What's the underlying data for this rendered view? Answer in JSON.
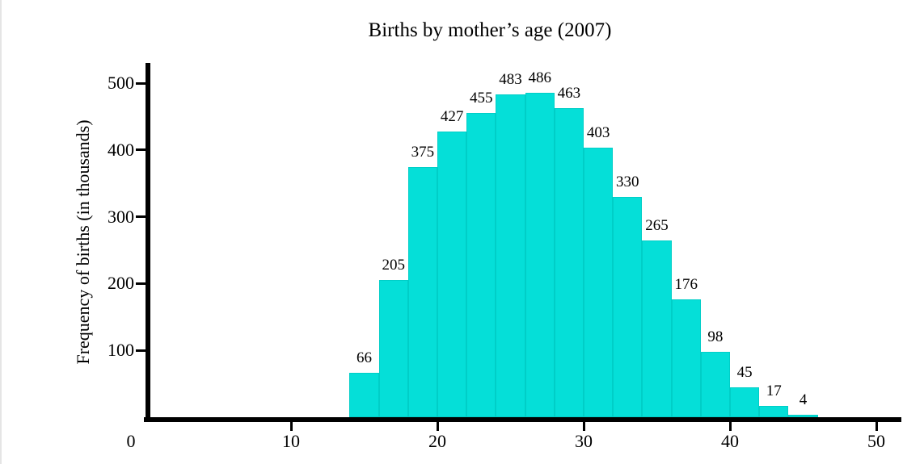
{
  "chart_data": {
    "type": "bar",
    "subtype": "histogram",
    "title": "Births by mother’s age (2007)",
    "xlabel": "",
    "ylabel": "Frequency of births (in thousands)",
    "bin_start": 14,
    "bin_width": 2,
    "bin_edges": [
      14,
      16,
      18,
      20,
      22,
      24,
      26,
      28,
      30,
      32,
      34,
      36,
      38,
      40,
      42,
      44,
      46
    ],
    "values": [
      66,
      205,
      375,
      427,
      455,
      483,
      486,
      463,
      403,
      330,
      265,
      176,
      98,
      45,
      17,
      4
    ],
    "x_ticks": [
      0,
      10,
      20,
      30,
      40,
      50
    ],
    "y_ticks": [
      100,
      200,
      300,
      400,
      500
    ],
    "xlim": [
      0,
      51.7
    ],
    "ylim": [
      0,
      530
    ],
    "grid": false,
    "legend": "none",
    "bar_color": "#05dfd8",
    "bar_edge_color": "#00cec7",
    "axis_color": "#000000",
    "text_color": "#000000",
    "background_color": "#ffffff"
  }
}
